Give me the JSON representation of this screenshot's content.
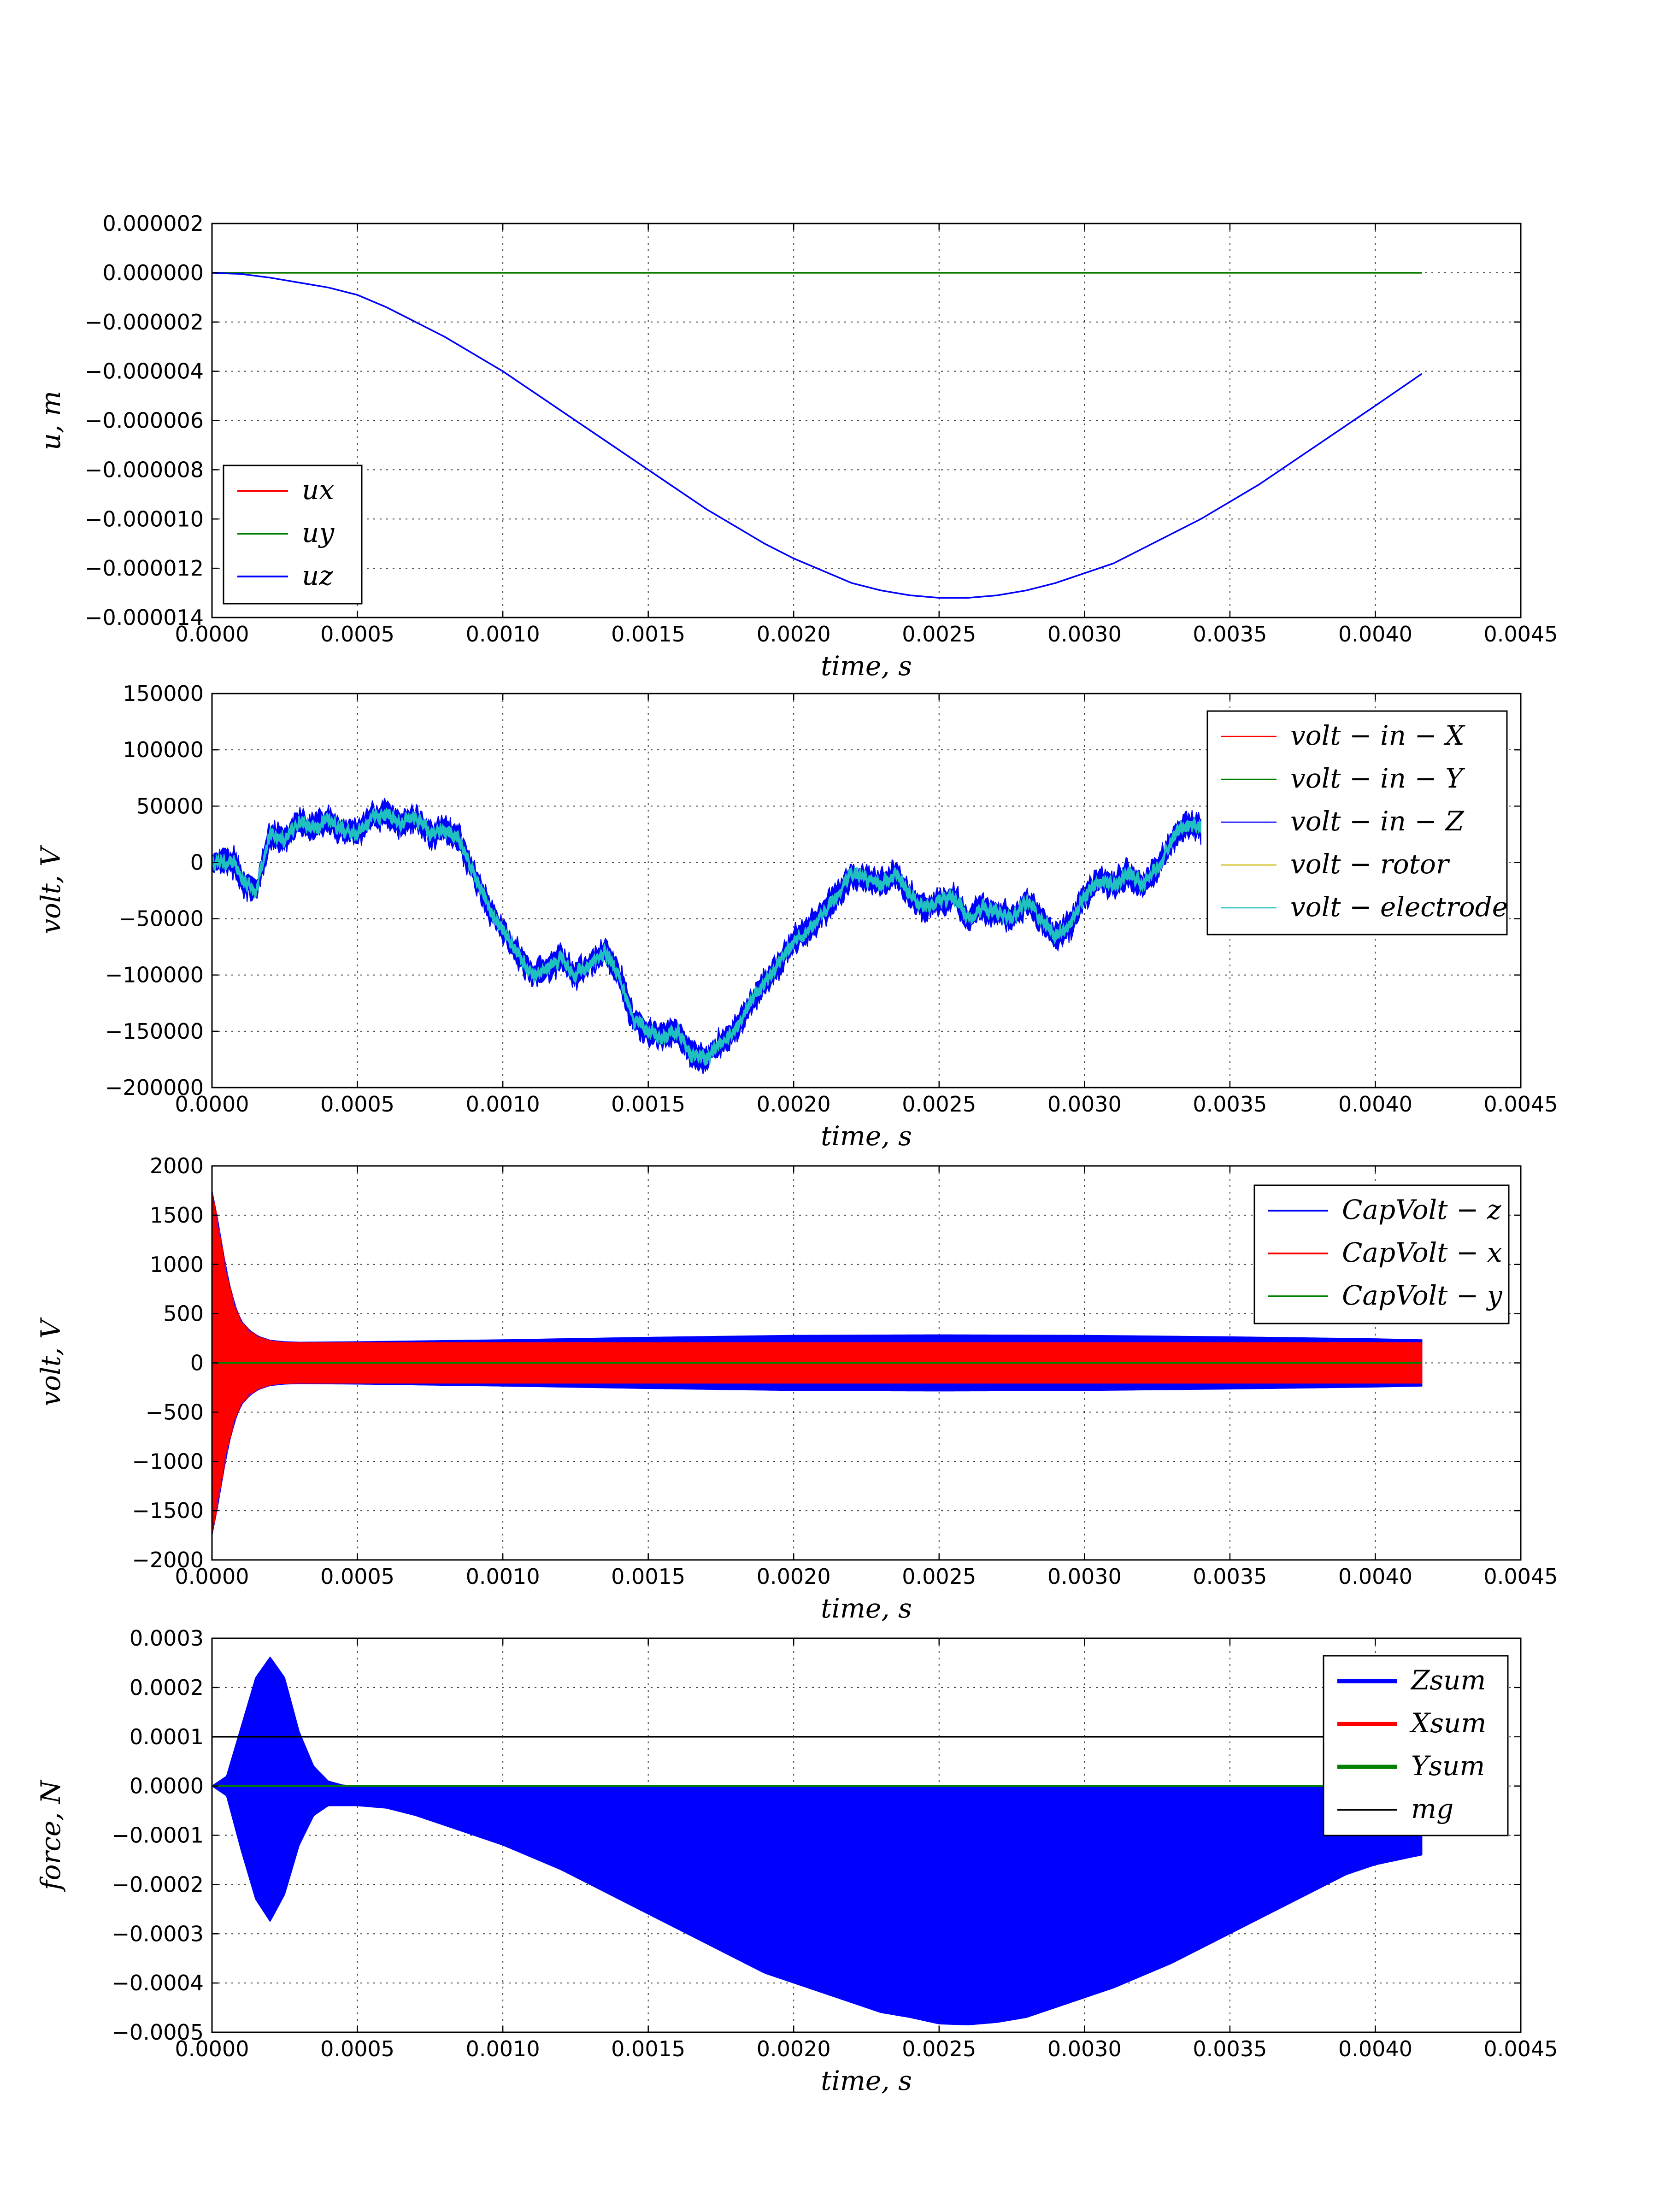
{
  "figure": {
    "background": "#ffffff"
  },
  "chart_data": [
    {
      "type": "line",
      "xlabel": "time, s",
      "ylabel": "u, m",
      "xlim": [
        0.0,
        0.0045
      ],
      "ylim": [
        -1.4e-05,
        2e-06
      ],
      "xticks": [
        "0.0000",
        "0.0005",
        "0.0010",
        "0.0015",
        "0.0020",
        "0.0025",
        "0.0030",
        "0.0035",
        "0.0040",
        "0.0045"
      ],
      "xtick_values": [
        0.0,
        0.0005,
        0.001,
        0.0015,
        0.002,
        0.0025,
        0.003,
        0.0035,
        0.004,
        0.0045
      ],
      "yticks": [
        "0.000002",
        "0.000000",
        "−0.000002",
        "−0.000004",
        "−0.000006",
        "−0.000008",
        "−0.000010",
        "−0.000012",
        "−0.000014"
      ],
      "ytick_values": [
        2e-06,
        0.0,
        -2e-06,
        -4e-06,
        -6e-06,
        -8e-06,
        -1e-05,
        -1.2e-05,
        -1.4e-05
      ],
      "grid": true,
      "legend_position": "lower-left",
      "series": [
        {
          "name": "ux",
          "color": "#ff0000",
          "kind": "line",
          "x": [
            0.0,
            0.00416
          ],
          "y": [
            0.0,
            0.0
          ]
        },
        {
          "name": "uy",
          "color": "#008000",
          "kind": "line",
          "x": [
            0.0,
            0.00416
          ],
          "y": [
            0.0,
            0.0
          ]
        },
        {
          "name": "uz",
          "color": "#0000ff",
          "kind": "line",
          "x": [
            0.0,
            0.0001,
            0.0002,
            0.0003,
            0.0004,
            0.0005,
            0.0006,
            0.0007,
            0.0008,
            0.0009,
            0.001,
            0.0011,
            0.0012,
            0.0013,
            0.0014,
            0.0015,
            0.0016,
            0.0017,
            0.0018,
            0.0019,
            0.002,
            0.0021,
            0.0022,
            0.0023,
            0.0024,
            0.0025,
            0.0026,
            0.0027,
            0.0028,
            0.0029,
            0.003,
            0.0031,
            0.0032,
            0.0033,
            0.0034,
            0.0035,
            0.0036,
            0.0037,
            0.0038,
            0.0039,
            0.004,
            0.00416
          ],
          "y": [
            0.0,
            -5e-08,
            -2e-07,
            -4e-07,
            -6e-07,
            -9e-07,
            -1.4e-06,
            -2e-06,
            -2.6e-06,
            -3.3e-06,
            -4e-06,
            -4.8e-06,
            -5.6e-06,
            -6.4e-06,
            -7.2e-06,
            -8e-06,
            -8.8e-06,
            -9.6e-06,
            -1.03e-05,
            -1.1e-05,
            -1.16e-05,
            -1.21e-05,
            -1.26e-05,
            -1.29e-05,
            -1.31e-05,
            -1.32e-05,
            -1.32e-05,
            -1.31e-05,
            -1.29e-05,
            -1.26e-05,
            -1.22e-05,
            -1.18e-05,
            -1.12e-05,
            -1.06e-05,
            -1e-05,
            -9.3e-06,
            -8.6e-06,
            -7.8e-06,
            -7e-06,
            -6.2e-06,
            -5.4e-06,
            -4.1e-06
          ]
        }
      ]
    },
    {
      "type": "line",
      "xlabel": "time, s",
      "ylabel": "volt, V",
      "xlim": [
        0.0,
        0.0045
      ],
      "ylim": [
        -200000,
        150000
      ],
      "xticks": [
        "0.0000",
        "0.0005",
        "0.0010",
        "0.0015",
        "0.0020",
        "0.0025",
        "0.0030",
        "0.0035",
        "0.0040",
        "0.0045"
      ],
      "xtick_values": [
        0.0,
        0.0005,
        0.001,
        0.0015,
        0.002,
        0.0025,
        0.003,
        0.0035,
        0.004,
        0.0045
      ],
      "yticks": [
        "150000",
        "100000",
        "50000",
        "0",
        "−50000",
        "−100000",
        "−150000",
        "−200000"
      ],
      "ytick_values": [
        150000,
        100000,
        50000,
        0,
        -50000,
        -100000,
        -150000,
        -200000
      ],
      "grid": true,
      "legend_position": "upper-right",
      "series": [
        {
          "name": "volt − in − X",
          "color": "#ff0000",
          "kind": "legend-only"
        },
        {
          "name": "volt − in − Y",
          "color": "#008000",
          "kind": "legend-only"
        },
        {
          "name": "volt − in − Z",
          "color": "#0000ff",
          "kind": "band",
          "x": [
            0.0,
            8e-05,
            0.0001,
            0.00015,
            0.0002,
            0.00025,
            0.0003,
            0.00035,
            0.0004,
            0.00045,
            0.0005,
            0.00055,
            0.0006,
            0.00065,
            0.0007,
            0.00075,
            0.0008,
            0.00085,
            0.0009,
            0.00095,
            0.001,
            0.00105,
            0.0011,
            0.00115,
            0.0012,
            0.00125,
            0.0013,
            0.00135,
            0.0014,
            0.00145,
            0.0015,
            0.00155,
            0.0016,
            0.00165,
            0.0017,
            0.00175,
            0.0018,
            0.00185,
            0.0019,
            0.00195,
            0.002,
            0.00205,
            0.0021,
            0.00215,
            0.0022,
            0.00225,
            0.0023,
            0.00235,
            0.0024,
            0.00245,
            0.0025,
            0.00255,
            0.0026,
            0.00265,
            0.0027,
            0.00275,
            0.0028,
            0.00285,
            0.0029,
            0.00295,
            0.003,
            0.00305,
            0.0031,
            0.00315,
            0.0032,
            0.00325,
            0.0033,
            0.00335,
            0.0034
          ],
          "y": [
            0,
            0,
            -15000,
            -25000,
            25000,
            20000,
            35000,
            30000,
            38000,
            28000,
            25000,
            40000,
            42000,
            35000,
            40000,
            25000,
            30000,
            20000,
            -10000,
            -40000,
            -60000,
            -80000,
            -100000,
            -95000,
            -85000,
            -100000,
            -90000,
            -80000,
            -100000,
            -140000,
            -150000,
            -155000,
            -150000,
            -170000,
            -175000,
            -160000,
            -150000,
            -125000,
            -105000,
            -90000,
            -70000,
            -60000,
            -45000,
            -30000,
            -10000,
            -15000,
            -20000,
            -10000,
            -30000,
            -40000,
            -35000,
            -30000,
            -50000,
            -40000,
            -45000,
            -50000,
            -35000,
            -50000,
            -65000,
            -55000,
            -30000,
            -15000,
            -20000,
            -10000,
            -20000,
            -5000,
            20000,
            35000,
            30000
          ],
          "band": 9000
        },
        {
          "name": "volt − rotor",
          "color": "#c8b400",
          "kind": "legend-only"
        },
        {
          "name": "volt − electrode",
          "color": "#20c0c0",
          "kind": "band",
          "x": [
            0.0,
            8e-05,
            0.0001,
            0.00015,
            0.0002,
            0.00025,
            0.0003,
            0.00035,
            0.0004,
            0.00045,
            0.0005,
            0.00055,
            0.0006,
            0.00065,
            0.0007,
            0.00075,
            0.0008,
            0.00085,
            0.0009,
            0.00095,
            0.001,
            0.00105,
            0.0011,
            0.00115,
            0.0012,
            0.00125,
            0.0013,
            0.00135,
            0.0014,
            0.00145,
            0.0015,
            0.00155,
            0.0016,
            0.00165,
            0.0017,
            0.00175,
            0.0018,
            0.00185,
            0.0019,
            0.00195,
            0.002,
            0.00205,
            0.0021,
            0.00215,
            0.0022,
            0.00225,
            0.0023,
            0.00235,
            0.0024,
            0.00245,
            0.0025,
            0.00255,
            0.0026,
            0.00265,
            0.0027,
            0.00275,
            0.0028,
            0.00285,
            0.0029,
            0.00295,
            0.003,
            0.00305,
            0.0031,
            0.00315,
            0.0032,
            0.00325,
            0.0033,
            0.00335,
            0.0034
          ],
          "y": [
            0,
            0,
            -15000,
            -25000,
            25000,
            20000,
            35000,
            30000,
            38000,
            28000,
            25000,
            40000,
            42000,
            35000,
            40000,
            25000,
            30000,
            20000,
            -10000,
            -40000,
            -60000,
            -80000,
            -100000,
            -95000,
            -85000,
            -100000,
            -90000,
            -80000,
            -100000,
            -140000,
            -150000,
            -155000,
            -150000,
            -170000,
            -175000,
            -160000,
            -150000,
            -125000,
            -105000,
            -90000,
            -70000,
            -60000,
            -45000,
            -30000,
            -10000,
            -15000,
            -20000,
            -10000,
            -30000,
            -40000,
            -35000,
            -30000,
            -50000,
            -40000,
            -45000,
            -50000,
            -35000,
            -50000,
            -65000,
            -55000,
            -30000,
            -15000,
            -20000,
            -10000,
            -20000,
            -5000,
            20000,
            35000,
            30000
          ],
          "band": 3500
        }
      ]
    },
    {
      "type": "line",
      "xlabel": "time, s",
      "ylabel": "volt, V",
      "xlim": [
        0.0,
        0.0045
      ],
      "ylim": [
        -2000,
        2000
      ],
      "xticks": [
        "0.0000",
        "0.0005",
        "0.0010",
        "0.0015",
        "0.0020",
        "0.0025",
        "0.0030",
        "0.0035",
        "0.0040",
        "0.0045"
      ],
      "xtick_values": [
        0.0,
        0.0005,
        0.001,
        0.0015,
        0.002,
        0.0025,
        0.003,
        0.0035,
        0.004,
        0.0045
      ],
      "yticks": [
        "2000",
        "1500",
        "1000",
        "500",
        "0",
        "−500",
        "−1000",
        "−1500",
        "−2000"
      ],
      "ytick_values": [
        2000,
        1500,
        1000,
        500,
        0,
        -500,
        -1000,
        -1500,
        -2000
      ],
      "grid": true,
      "legend_position": "upper-right",
      "series": [
        {
          "name": "CapVolt − z",
          "color": "#0000ff",
          "kind": "envelope",
          "x": [
            0.0,
            2e-05,
            4e-05,
            6e-05,
            8e-05,
            0.0001,
            0.00013,
            0.00016,
            0.0002,
            0.00025,
            0.0003,
            0.0005,
            0.001,
            0.0015,
            0.002,
            0.0025,
            0.003,
            0.0035,
            0.004,
            0.00416
          ],
          "y": [
            1750,
            1450,
            1100,
            800,
            580,
            430,
            330,
            270,
            230,
            215,
            210,
            215,
            235,
            260,
            280,
            285,
            280,
            265,
            245,
            235
          ]
        },
        {
          "name": "CapVolt − x",
          "color": "#ff0000",
          "kind": "envelope",
          "x": [
            0.0,
            2e-05,
            4e-05,
            6e-05,
            8e-05,
            0.0001,
            0.00013,
            0.00016,
            0.0002,
            0.00025,
            0.0003,
            0.0005,
            0.001,
            0.0015,
            0.002,
            0.0025,
            0.003,
            0.0035,
            0.004,
            0.00416
          ],
          "y": [
            1600,
            1300,
            1000,
            720,
            520,
            390,
            300,
            250,
            220,
            208,
            205,
            205,
            205,
            205,
            205,
            205,
            205,
            205,
            205,
            205
          ]
        },
        {
          "name": "CapVolt − y",
          "color": "#008000",
          "kind": "line",
          "x": [
            0.0,
            0.00416
          ],
          "y": [
            0.0,
            0.0
          ]
        }
      ]
    },
    {
      "type": "area",
      "xlabel": "force, N",
      "xlabel_axis": "time, s",
      "ylabel": "force, N",
      "xlim": [
        0.0,
        0.0045
      ],
      "ylim": [
        -0.0005,
        0.0003
      ],
      "xticks": [
        "0.0000",
        "0.0005",
        "0.0010",
        "0.0015",
        "0.0020",
        "0.0025",
        "0.0030",
        "0.0035",
        "0.0040",
        "0.0045"
      ],
      "xtick_values": [
        0.0,
        0.0005,
        0.001,
        0.0015,
        0.002,
        0.0025,
        0.003,
        0.0035,
        0.004,
        0.0045
      ],
      "yticks": [
        "0.0003",
        "0.0002",
        "0.0001",
        "0.0000",
        "−0.0001",
        "−0.0002",
        "−0.0003",
        "−0.0004",
        "−0.0005"
      ],
      "ytick_values": [
        0.0003,
        0.0002,
        0.0001,
        0.0,
        -0.0001,
        -0.0002,
        -0.0003,
        -0.0004,
        -0.0005
      ],
      "grid": true,
      "legend_position": "upper-right",
      "series": [
        {
          "name": "Zsum",
          "color": "#0000ff",
          "kind": "fill",
          "x": [
            0.0,
            5e-05,
            0.0001,
            0.00015,
            0.0002,
            0.00025,
            0.0003,
            0.00035,
            0.0004,
            0.00045,
            0.0005,
            0.0006,
            0.0007,
            0.0008,
            0.0009,
            0.001,
            0.0011,
            0.0012,
            0.0013,
            0.0014,
            0.0015,
            0.0016,
            0.0017,
            0.0018,
            0.0019,
            0.002,
            0.0021,
            0.0022,
            0.0023,
            0.0024,
            0.0025,
            0.0026,
            0.0027,
            0.0028,
            0.0029,
            0.003,
            0.0031,
            0.0032,
            0.0033,
            0.0034,
            0.0035,
            0.0036,
            0.0037,
            0.0038,
            0.0039,
            0.004,
            0.00416
          ],
          "upper": [
            0.0,
            2e-05,
            0.00012,
            0.00022,
            0.000262,
            0.00022,
            0.00011,
            4e-05,
            1e-05,
            2e-06,
            0.0,
            0.0,
            0.0,
            0.0,
            0.0,
            0.0,
            0.0,
            0.0,
            0.0,
            0.0,
            0.0,
            0.0,
            0.0,
            0.0,
            0.0,
            0.0,
            0.0,
            0.0,
            0.0,
            0.0,
            0.0,
            0.0,
            0.0,
            0.0,
            0.0,
            0.0,
            0.0,
            0.0,
            0.0,
            0.0,
            0.0,
            0.0,
            0.0,
            0.0,
            0.0,
            0.0,
            0.0
          ],
          "lower": [
            0.0,
            -2e-05,
            -0.00013,
            -0.00023,
            -0.000275,
            -0.00022,
            -0.00012,
            -6e-05,
            -4e-05,
            -4e-05,
            -4e-05,
            -4.5e-05,
            -6e-05,
            -8e-05,
            -0.0001,
            -0.00012,
            -0.000145,
            -0.00017,
            -0.0002,
            -0.00023,
            -0.00026,
            -0.00029,
            -0.00032,
            -0.00035,
            -0.00038,
            -0.0004,
            -0.00042,
            -0.00044,
            -0.00046,
            -0.00047,
            -0.000483,
            -0.000485,
            -0.00048,
            -0.00047,
            -0.00045,
            -0.00043,
            -0.00041,
            -0.000385,
            -0.00036,
            -0.00033,
            -0.0003,
            -0.00027,
            -0.00024,
            -0.00021,
            -0.00018,
            -0.00016,
            -0.00014
          ]
        },
        {
          "name": "Xsum",
          "color": "#ff0000",
          "kind": "line",
          "x": [
            0.0,
            0.00416
          ],
          "y": [
            0.0,
            0.0
          ]
        },
        {
          "name": "Ysum",
          "color": "#008000",
          "kind": "line",
          "x": [
            0.0,
            0.00416
          ],
          "y": [
            0.0,
            0.0
          ]
        },
        {
          "name": "mg",
          "color": "#000000",
          "kind": "line",
          "x": [
            0.0,
            0.00416
          ],
          "y": [
            0.0001,
            0.0001
          ]
        }
      ]
    }
  ]
}
